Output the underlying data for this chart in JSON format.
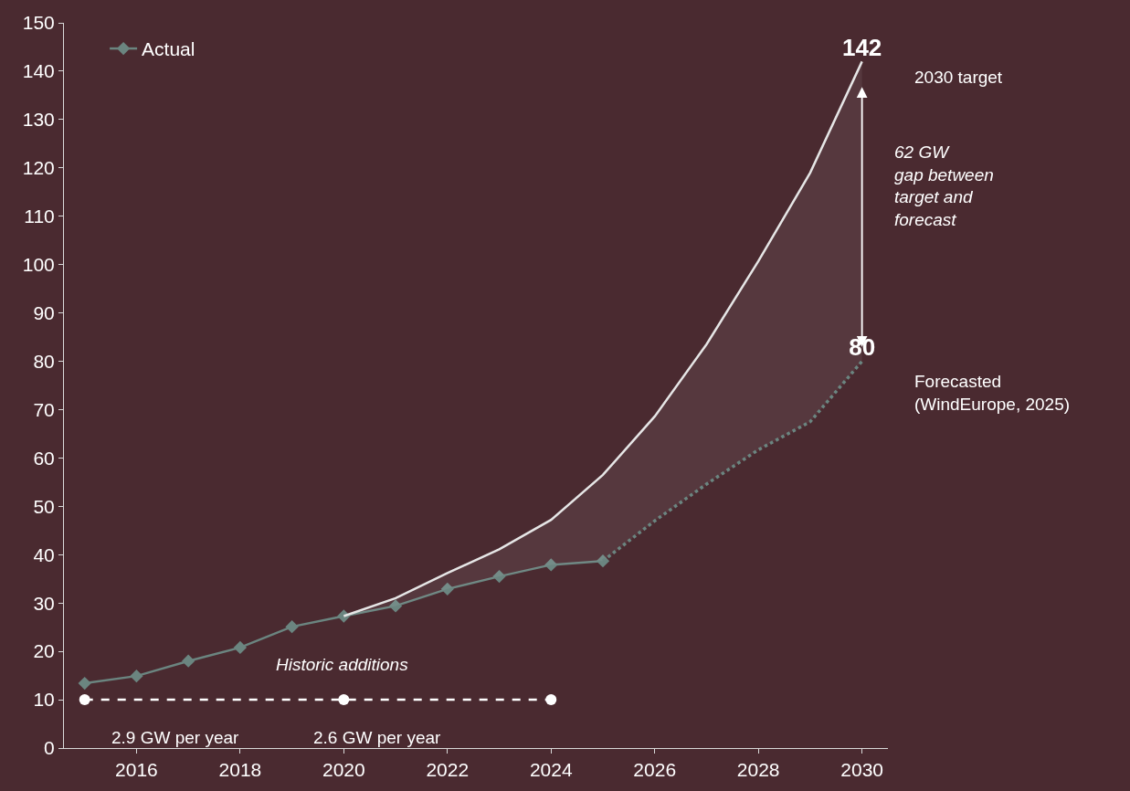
{
  "chart_data": {
    "type": "line",
    "xlim": [
      2014.6,
      2030.5
    ],
    "xticks": [
      2016,
      2018,
      2020,
      2022,
      2024,
      2026,
      2028,
      2030
    ],
    "ylim": [
      0,
      150
    ],
    "yticks": [
      0,
      10,
      20,
      30,
      40,
      50,
      60,
      70,
      80,
      90,
      100,
      110,
      120,
      130,
      140,
      150
    ],
    "grid": false,
    "legend": "top left",
    "series": [
      {
        "name": "Actual",
        "color": "#6b8580",
        "marker": "diamond",
        "line_style": "solid",
        "x": [
          2015,
          2016,
          2017,
          2018,
          2019,
          2020,
          2021,
          2022,
          2023,
          2024,
          2025
        ],
        "values": [
          13.4,
          14.9,
          18.0,
          20.8,
          25.1,
          27.3,
          29.4,
          32.9,
          35.5,
          37.9,
          38.7
        ]
      },
      {
        "color": "#e6e6e6",
        "marker": "none",
        "line_style": "solid",
        "x": [
          2020,
          2021,
          2022,
          2023,
          2024,
          2025,
          2026,
          2027,
          2028,
          2029,
          2030
        ],
        "values": [
          27.3,
          31.0,
          36.2,
          41.1,
          47.2,
          56.5,
          68.6,
          83.5,
          100.7,
          119,
          142
        ],
        "lower": [
          27.3,
          29.4,
          32.9,
          35.5,
          37.9,
          38.7,
          47,
          54.6,
          61.7,
          67.5,
          80
        ],
        "upper": [
          27.3,
          31.0,
          36.2,
          41.1,
          47.2,
          56.5,
          68.6,
          83.5,
          100.7,
          119,
          142
        ],
        "value_labels": [
          null,
          null,
          null,
          null,
          null,
          null,
          null,
          null,
          null,
          null,
          "142"
        ]
      },
      {
        "color": "#6b8580",
        "marker": "none",
        "line_style": "dotted",
        "x": [
          2025,
          2026,
          2027,
          2028,
          2029,
          2030
        ],
        "values": [
          38.7,
          47,
          54.6,
          61.7,
          67.5,
          80
        ],
        "value_labels": [
          null,
          null,
          null,
          null,
          null,
          "80"
        ]
      },
      {
        "color": "#ffffff",
        "marker": "circle",
        "line_style": "dashed",
        "x": [
          2015,
          2020,
          2024
        ],
        "values": [
          10,
          10,
          10
        ]
      }
    ],
    "annotations": [
      "2030 target",
      "Forecasted\n(WindEurope, 2025)",
      "62 GW\ngap between\ntarget and\nforecast",
      "Historic additions",
      "2.9 GW per year",
      "2.6 GW per year"
    ]
  }
}
